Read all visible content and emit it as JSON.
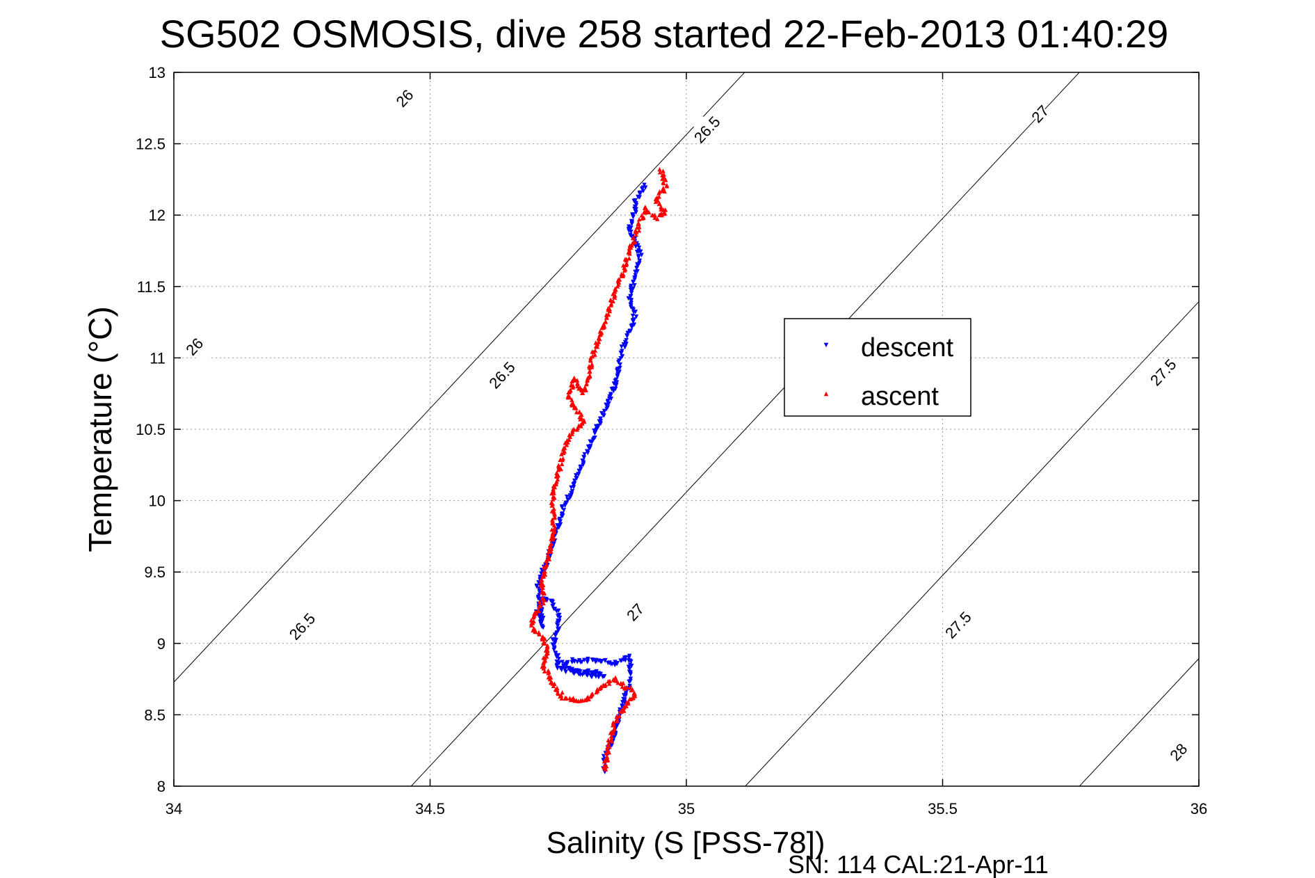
{
  "chart_data": {
    "type": "scatter",
    "title": "SG502 OSMOSIS, dive 258 started 22-Feb-2013 01:40:29",
    "xlabel": "Salinity (S [PSS-78])",
    "ylabel": "Temperature (°C)",
    "footer": "SN: 114  CAL:21-Apr-11",
    "xlim": [
      34,
      36
    ],
    "ylim": [
      8,
      13
    ],
    "xticks": [
      "34",
      "34.5",
      "35",
      "35.5",
      "36"
    ],
    "yticks": [
      "8",
      "8.5",
      "9",
      "9.5",
      "10",
      "10.5",
      "11",
      "11.5",
      "12",
      "12.5",
      "13"
    ],
    "grid": true,
    "legend_position": "right-center",
    "contour_labels": [
      {
        "text": "26",
        "s": 34.45,
        "t": 12.82
      },
      {
        "text": "26",
        "s": 34.04,
        "t": 11.08
      },
      {
        "text": "26.5",
        "s": 35.04,
        "t": 12.6
      },
      {
        "text": "26.5",
        "s": 34.64,
        "t": 10.88
      },
      {
        "text": "26.5",
        "s": 34.25,
        "t": 9.12
      },
      {
        "text": "27",
        "s": 35.69,
        "t": 12.71
      },
      {
        "text": "27",
        "s": 34.9,
        "t": 9.22
      },
      {
        "text": "27.5",
        "s": 35.93,
        "t": 10.9
      },
      {
        "text": "27.5",
        "s": 35.53,
        "t": 9.13
      },
      {
        "text": "28",
        "s": 35.96,
        "t": 8.24
      }
    ],
    "series": [
      {
        "name": "descent",
        "color": "#0000ff",
        "marker": "triangle-down",
        "path": [
          [
            34.84,
            8.1
          ],
          [
            34.84,
            8.2
          ],
          [
            34.86,
            8.35
          ],
          [
            34.87,
            8.5
          ],
          [
            34.88,
            8.62
          ],
          [
            34.89,
            8.72
          ],
          [
            34.89,
            8.9
          ],
          [
            34.86,
            8.86
          ],
          [
            34.82,
            8.88
          ],
          [
            34.78,
            8.88
          ],
          [
            34.76,
            8.86
          ],
          [
            34.77,
            8.82
          ],
          [
            34.8,
            8.78
          ],
          [
            34.84,
            8.77
          ],
          [
            34.82,
            8.8
          ],
          [
            34.78,
            8.8
          ],
          [
            34.75,
            8.82
          ],
          [
            34.75,
            8.9
          ],
          [
            34.74,
            9.0
          ],
          [
            34.75,
            9.1
          ],
          [
            34.75,
            9.2
          ],
          [
            34.74,
            9.28
          ],
          [
            34.72,
            9.32
          ],
          [
            34.71,
            9.22
          ],
          [
            34.72,
            9.12
          ],
          [
            34.71,
            9.4
          ],
          [
            34.72,
            9.5
          ],
          [
            34.73,
            9.6
          ],
          [
            34.74,
            9.72
          ],
          [
            34.75,
            9.82
          ],
          [
            34.76,
            9.95
          ],
          [
            34.78,
            10.1
          ],
          [
            34.8,
            10.28
          ],
          [
            34.82,
            10.45
          ],
          [
            34.84,
            10.62
          ],
          [
            34.86,
            10.8
          ],
          [
            34.87,
            10.95
          ],
          [
            34.88,
            11.12
          ],
          [
            34.9,
            11.28
          ],
          [
            34.89,
            11.42
          ],
          [
            34.9,
            11.58
          ],
          [
            34.91,
            11.72
          ],
          [
            34.9,
            11.82
          ],
          [
            34.89,
            11.9
          ],
          [
            34.9,
            12.05
          ],
          [
            34.9,
            12.1
          ],
          [
            34.91,
            12.15
          ],
          [
            34.92,
            12.22
          ]
        ]
      },
      {
        "name": "ascent",
        "color": "#ff0000",
        "marker": "triangle-up",
        "path": [
          [
            34.95,
            12.32
          ],
          [
            34.96,
            12.2
          ],
          [
            34.94,
            12.1
          ],
          [
            34.96,
            12.02
          ],
          [
            34.94,
            11.98
          ],
          [
            34.92,
            12.05
          ],
          [
            34.9,
            11.85
          ],
          [
            34.88,
            11.65
          ],
          [
            34.86,
            11.45
          ],
          [
            34.84,
            11.25
          ],
          [
            34.82,
            11.05
          ],
          [
            34.81,
            10.9
          ],
          [
            34.8,
            10.75
          ],
          [
            34.78,
            10.85
          ],
          [
            34.77,
            10.72
          ],
          [
            34.79,
            10.62
          ],
          [
            34.8,
            10.55
          ],
          [
            34.77,
            10.45
          ],
          [
            34.76,
            10.35
          ],
          [
            34.75,
            10.2
          ],
          [
            34.74,
            10.05
          ],
          [
            34.74,
            9.92
          ],
          [
            34.74,
            9.75
          ],
          [
            34.73,
            9.6
          ],
          [
            34.72,
            9.45
          ],
          [
            34.72,
            9.3
          ],
          [
            34.7,
            9.18
          ],
          [
            34.7,
            9.1
          ],
          [
            34.72,
            9.05
          ],
          [
            34.73,
            8.95
          ],
          [
            34.72,
            8.85
          ],
          [
            34.74,
            8.72
          ],
          [
            34.76,
            8.62
          ],
          [
            34.8,
            8.6
          ],
          [
            34.84,
            8.7
          ],
          [
            34.86,
            8.75
          ],
          [
            34.88,
            8.7
          ],
          [
            34.9,
            8.65
          ],
          [
            34.88,
            8.55
          ],
          [
            34.86,
            8.45
          ],
          [
            34.85,
            8.3
          ],
          [
            34.84,
            8.1
          ]
        ]
      }
    ]
  }
}
